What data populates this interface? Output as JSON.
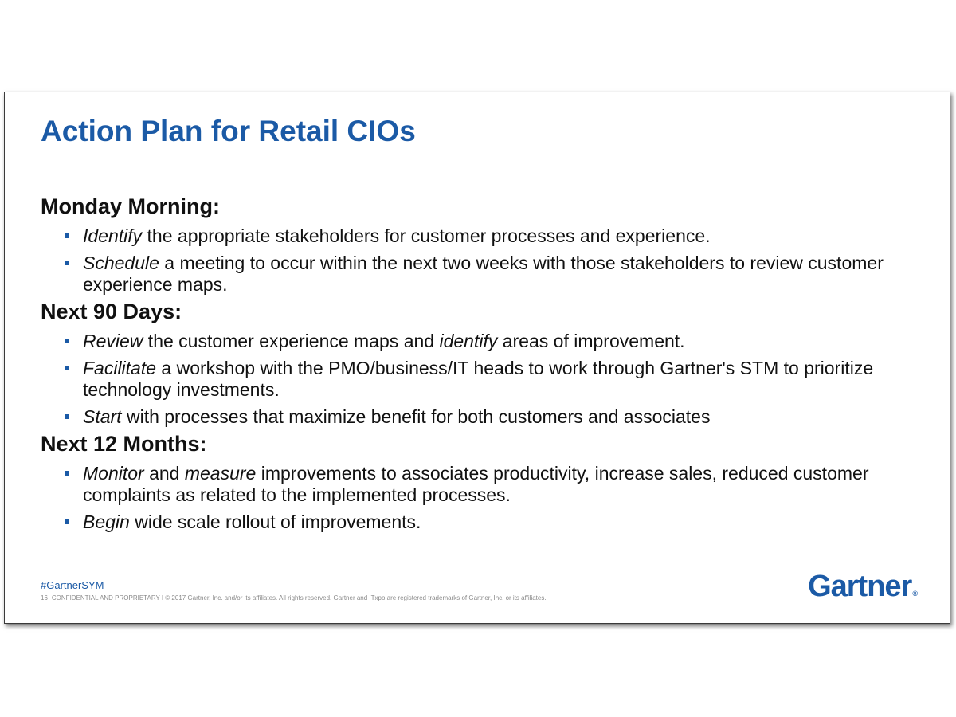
{
  "slide": {
    "title": "Action Plan for Retail CIOs",
    "sections": [
      {
        "heading": "Monday Morning:",
        "items": [
          {
            "verb": "Identify",
            "text": " the appropriate stakeholders for customer processes and experience."
          },
          {
            "verb": "Schedule",
            "text": " a meeting to occur within the next two weeks with those stakeholders to review customer experience maps."
          }
        ]
      },
      {
        "heading": "Next 90 Days:",
        "items": [
          {
            "verb": "Review",
            "text": " the customer experience maps and ",
            "verb2": "identify",
            "text2": " areas of improvement."
          },
          {
            "verb": "Facilitate",
            "text": " a workshop with the PMO/business/IT heads to work through Gartner's STM to prioritize technology investments."
          },
          {
            "verb": "Start",
            "text": " with processes that maximize benefit for both customers and associates"
          }
        ]
      },
      {
        "heading": "Next 12 Months:",
        "items": [
          {
            "verb": "Monitor",
            "text": " and ",
            "verb2": "measure",
            "text2": " improvements to associates productivity, increase sales, reduced customer complaints as related to the implemented processes."
          },
          {
            "verb": "Begin",
            "text": " wide scale rollout of improvements."
          }
        ]
      }
    ],
    "footer": {
      "hashtag": "#GartnerSYM",
      "page_number": "16",
      "legal": "CONFIDENTIAL AND PROPRIETARY  I  © 2017 Gartner, Inc. and/or its affiliates. All rights reserved. Gartner and ITxpo are registered trademarks of Gartner, Inc. or its affiliates.",
      "logo_text": "Gartner",
      "logo_mark": "®"
    },
    "colors": {
      "accent": "#1b5aa6",
      "text": "#111111",
      "legal": "#8a8a8a"
    }
  }
}
